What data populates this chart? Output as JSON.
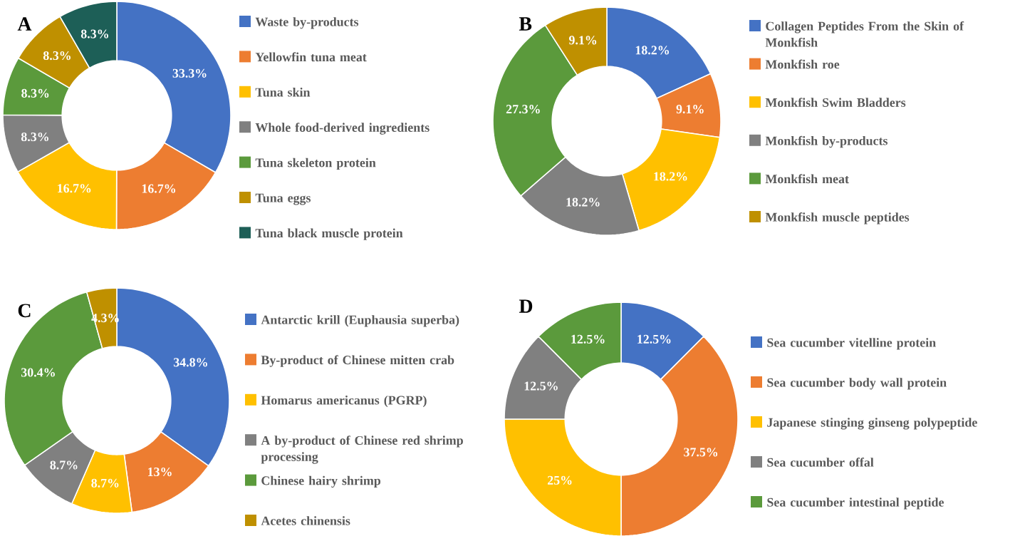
{
  "chart_data": [
    {
      "type": "donut",
      "title": "A",
      "legend": "right",
      "categories": [
        "Waste by-products",
        "Yellowfin tuna meat",
        "Tuna skin",
        "Whole food-derived ingredients",
        "Tuna skeleton protein",
        "Tuna eggs",
        "Tuna black muscle protein"
      ],
      "values": [
        33.3,
        16.7,
        16.7,
        8.3,
        8.3,
        8.3,
        8.3
      ],
      "value_labels": [
        "33.3%",
        "16.7%",
        "16.7%",
        "8.3%",
        "8.3%",
        "8.3%",
        "8.3%"
      ],
      "colors": [
        "#4472c4",
        "#ed7d31",
        "#ffc000",
        "#808080",
        "#5b9a3c",
        "#bf9000",
        "#1d5f57"
      ]
    },
    {
      "type": "donut",
      "title": "B",
      "legend": "right",
      "categories": [
        "Collagen Peptides From the Skin of Monkfish",
        "Monkfish  roe",
        "Monkfish Swim Bladders",
        "Monkfish by-products",
        "Monkfish meat",
        "Monkfish muscle peptides"
      ],
      "values": [
        18.2,
        9.1,
        18.2,
        18.2,
        27.3,
        9.1
      ],
      "value_labels": [
        "18.2%",
        "9.1%",
        "18.2%",
        "18.2%",
        "27.3%",
        "9.1%"
      ],
      "colors": [
        "#4472c4",
        "#ed7d31",
        "#ffc000",
        "#808080",
        "#5b9a3c",
        "#bf9000"
      ]
    },
    {
      "type": "donut",
      "title": "C",
      "legend": "right",
      "categories": [
        "Antarctic krill (Euphausia superba)",
        "By-product of Chinese mitten crab",
        "Homarus americanus (PGRP)",
        "A by-product of Chinese red shrimp processing",
        "Chinese hairy shrimp",
        "Acetes chinensis"
      ],
      "values": [
        34.8,
        13,
        8.7,
        8.7,
        30.4,
        4.3
      ],
      "value_labels": [
        "34.8%",
        "13%",
        "8.7%",
        "8.7%",
        "30.4%",
        "4.3%"
      ],
      "colors": [
        "#4472c4",
        "#ed7d31",
        "#ffc000",
        "#808080",
        "#5b9a3c",
        "#bf9000"
      ]
    },
    {
      "type": "donut",
      "title": "D",
      "legend": "right",
      "categories": [
        "Sea cucumber vitelline protein",
        "Sea cucumber body wall protein",
        "Japanese stinging ginseng polypeptide",
        "Sea cucumber offal",
        "Sea cucumber intestinal peptide"
      ],
      "values": [
        12.5,
        37.5,
        25,
        12.5,
        12.5
      ],
      "value_labels": [
        "12.5%",
        "37.5%",
        "25%",
        "12.5%",
        "12.5%"
      ],
      "colors": [
        "#4472c4",
        "#ed7d31",
        "#ffc000",
        "#808080",
        "#5b9a3c"
      ]
    }
  ]
}
